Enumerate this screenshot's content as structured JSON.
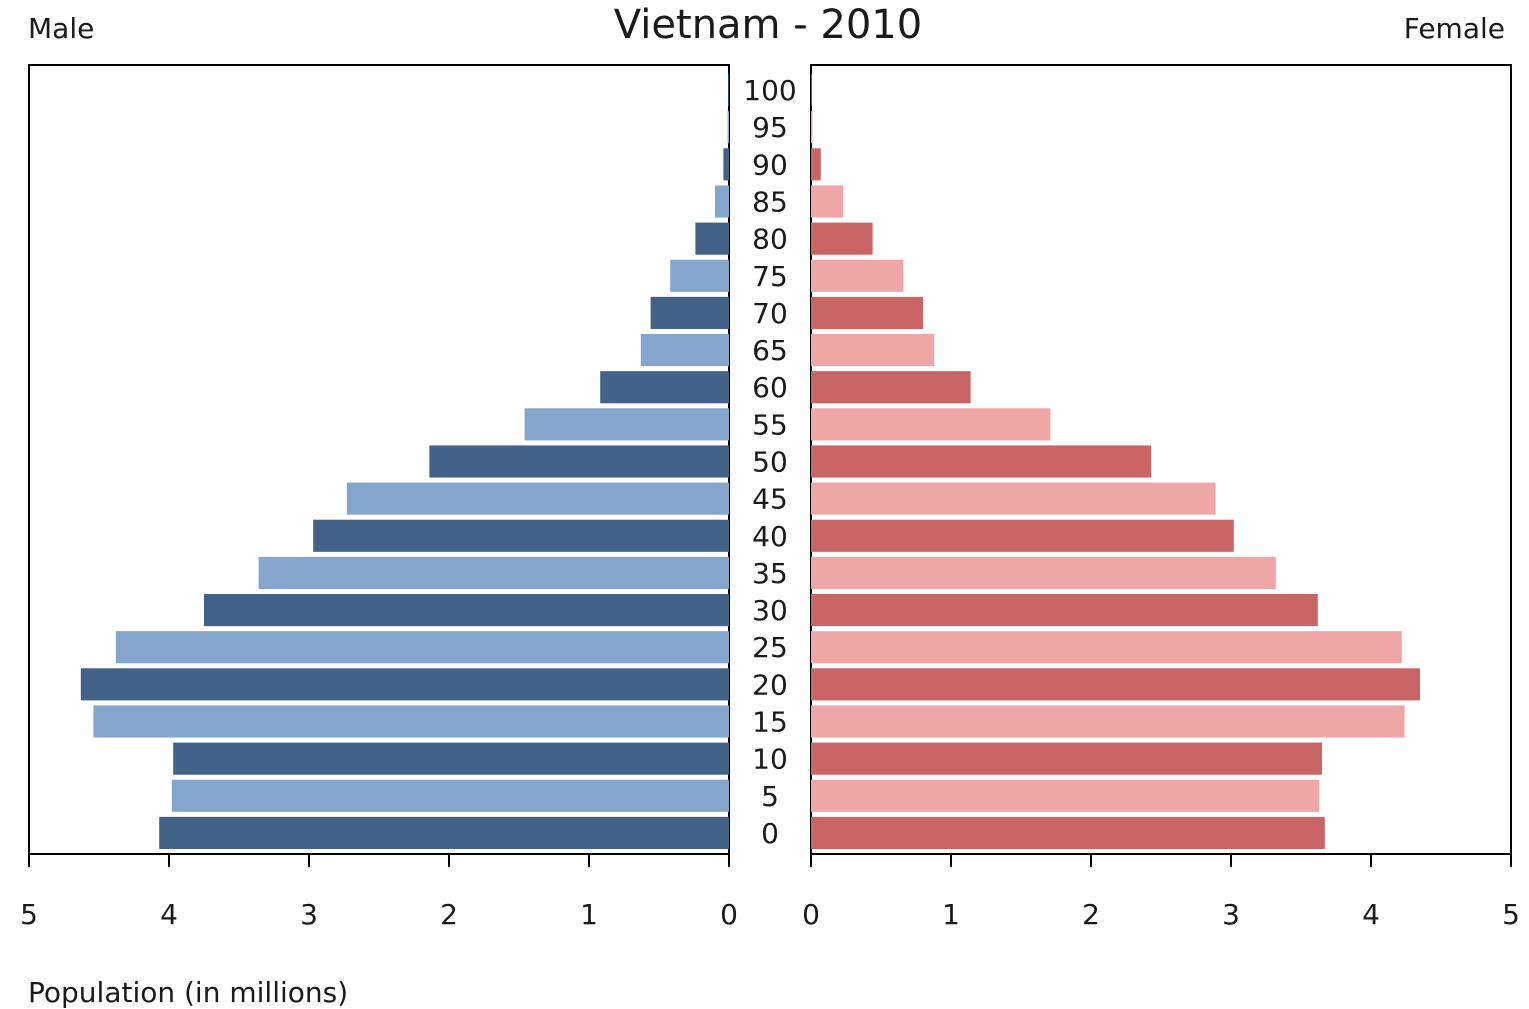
{
  "chart_data": {
    "type": "bar",
    "orientation": "horizontal",
    "layout": "population-pyramid",
    "title": "Vietnam - 2010",
    "left_label": "Male",
    "right_label": "Female",
    "xlabel": "Population (in millions)",
    "xlim": [
      0,
      5
    ],
    "x_ticks": [
      "0",
      "1",
      "2",
      "3",
      "4",
      "5"
    ],
    "categories": [
      "0",
      "5",
      "10",
      "15",
      "20",
      "25",
      "30",
      "35",
      "40",
      "45",
      "50",
      "55",
      "60",
      "65",
      "70",
      "75",
      "80",
      "85",
      "90",
      "95",
      "100"
    ],
    "series": [
      {
        "name": "Male",
        "values": [
          4.07,
          3.98,
          3.97,
          4.54,
          4.63,
          4.38,
          3.75,
          3.36,
          2.97,
          2.73,
          2.14,
          1.46,
          0.92,
          0.63,
          0.56,
          0.42,
          0.24,
          0.1,
          0.04,
          0.01,
          0.005
        ]
      },
      {
        "name": "Female",
        "values": [
          3.67,
          3.63,
          3.65,
          4.24,
          4.35,
          4.22,
          3.62,
          3.32,
          3.02,
          2.89,
          2.43,
          1.71,
          1.14,
          0.88,
          0.8,
          0.66,
          0.44,
          0.23,
          0.07,
          0.01,
          0.005
        ]
      }
    ],
    "colors": {
      "male_dark": "#426287",
      "male_light": "#85a6cc",
      "female_dark": "#c96565",
      "female_light": "#efa6a6"
    },
    "grid": false,
    "legend": "none"
  }
}
